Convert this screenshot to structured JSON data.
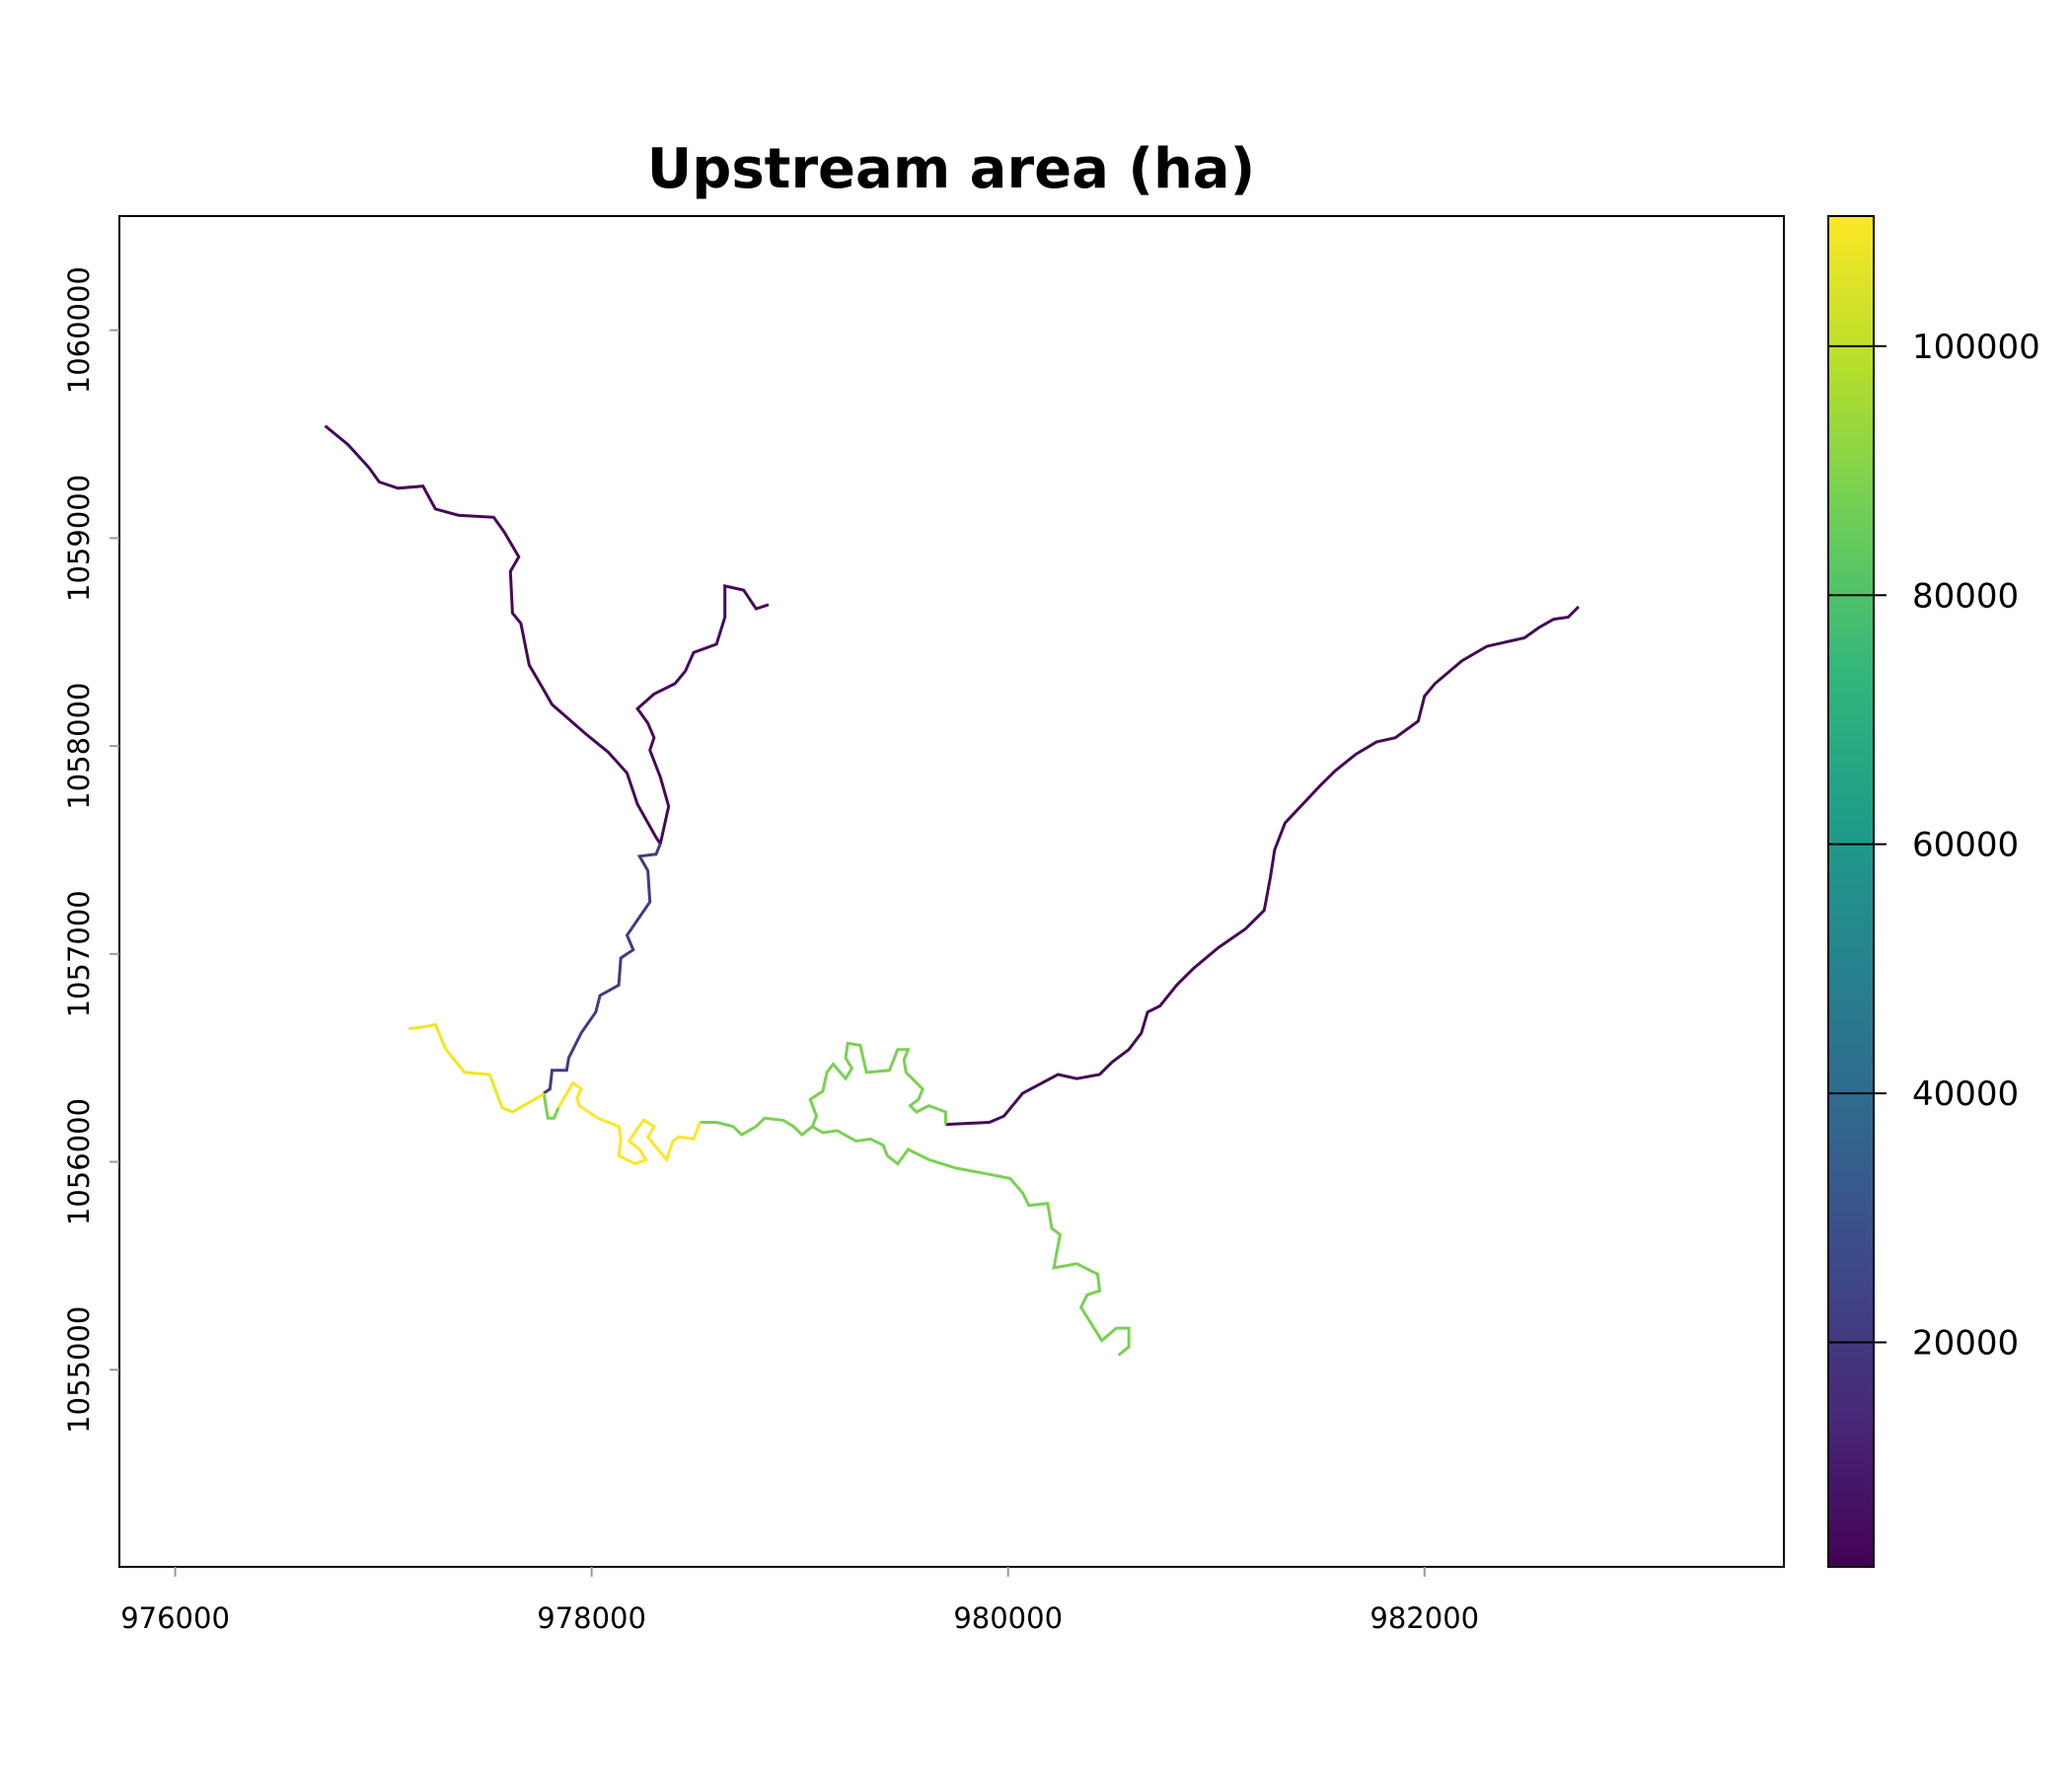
{
  "chart_data": {
    "type": "line",
    "title": "Upstream area (ha)",
    "xlabel": "",
    "ylabel": "",
    "xlim": [
      975732,
      983726
    ],
    "ylim": [
      1054052,
      1060549
    ],
    "x_ticks": [
      976000,
      978000,
      980000,
      982000
    ],
    "y_ticks": [
      1055000,
      1056000,
      1057000,
      1058000,
      1059000,
      1060000
    ],
    "grid": false,
    "colorbar": {
      "range": [
        1970,
        110450
      ],
      "ticks": [
        20000,
        40000,
        60000,
        80000,
        100000
      ],
      "colormap": "viridis",
      "stops": [
        "#440154",
        "#482878",
        "#3e4989",
        "#31688e",
        "#26828e",
        "#1f9e89",
        "#35b779",
        "#6ece58",
        "#b5de2b",
        "#fde725"
      ]
    },
    "series": [
      {
        "value": 3000,
        "color": "#46085c",
        "points": [
          [
            976720,
            1059540
          ],
          [
            976830,
            1059450
          ],
          [
            976930,
            1059340
          ],
          [
            976980,
            1059270
          ],
          [
            977070,
            1059240
          ],
          [
            977190,
            1059250
          ],
          [
            977250,
            1059140
          ],
          [
            977360,
            1059110
          ],
          [
            977530,
            1059100
          ],
          [
            977580,
            1059030
          ],
          [
            977650,
            1058910
          ],
          [
            977610,
            1058840
          ],
          [
            977620,
            1058640
          ],
          [
            977660,
            1058590
          ],
          [
            977700,
            1058390
          ],
          [
            977770,
            1058270
          ],
          [
            977810,
            1058200
          ],
          [
            977970,
            1058060
          ],
          [
            978080,
            1057970
          ],
          [
            978170,
            1057870
          ],
          [
            978220,
            1057720
          ],
          [
            978310,
            1057560
          ],
          [
            978330,
            1057530
          ]
        ]
      },
      {
        "value": 3000,
        "color": "#46085c",
        "points": [
          [
            978850,
            1058680
          ],
          [
            978790,
            1058660
          ],
          [
            978730,
            1058750
          ],
          [
            978640,
            1058770
          ],
          [
            978640,
            1058620
          ],
          [
            978600,
            1058490
          ],
          [
            978490,
            1058450
          ],
          [
            978450,
            1058360
          ],
          [
            978400,
            1058300
          ],
          [
            978300,
            1058250
          ],
          [
            978220,
            1058180
          ],
          [
            978270,
            1058110
          ],
          [
            978300,
            1058040
          ],
          [
            978280,
            1057980
          ],
          [
            978330,
            1057850
          ],
          [
            978370,
            1057710
          ],
          [
            978330,
            1057530
          ]
        ]
      },
      {
        "value": 25000,
        "color": "#443983",
        "points": [
          [
            978330,
            1057530
          ],
          [
            978310,
            1057480
          ],
          [
            978230,
            1057470
          ],
          [
            978270,
            1057400
          ],
          [
            978280,
            1057250
          ],
          [
            978170,
            1057090
          ],
          [
            978200,
            1057020
          ],
          [
            978140,
            1056980
          ],
          [
            978130,
            1056850
          ],
          [
            978040,
            1056800
          ],
          [
            978020,
            1056720
          ],
          [
            977950,
            1056620
          ],
          [
            977890,
            1056500
          ],
          [
            977880,
            1056440
          ],
          [
            977810,
            1056440
          ],
          [
            977800,
            1056350
          ],
          [
            977770,
            1056330
          ]
        ]
      },
      {
        "value": 4000,
        "color": "#440c56",
        "points": [
          [
            979700,
            1056180
          ],
          [
            979910,
            1056190
          ],
          [
            979980,
            1056220
          ],
          [
            980070,
            1056330
          ],
          [
            980240,
            1056420
          ],
          [
            980330,
            1056400
          ],
          [
            980440,
            1056420
          ],
          [
            980500,
            1056480
          ],
          [
            980580,
            1056540
          ],
          [
            980640,
            1056620
          ],
          [
            980670,
            1056720
          ],
          [
            980730,
            1056750
          ],
          [
            980810,
            1056850
          ],
          [
            980890,
            1056930
          ],
          [
            981010,
            1057030
          ],
          [
            981140,
            1057120
          ],
          [
            981230,
            1057210
          ],
          [
            981260,
            1057370
          ],
          [
            981280,
            1057500
          ],
          [
            981330,
            1057630
          ],
          [
            981500,
            1057810
          ],
          [
            981570,
            1057880
          ],
          [
            981670,
            1057960
          ],
          [
            981770,
            1058020
          ],
          [
            981860,
            1058040
          ],
          [
            981970,
            1058120
          ],
          [
            982000,
            1058240
          ],
          [
            982050,
            1058300
          ],
          [
            982180,
            1058410
          ],
          [
            982300,
            1058480
          ],
          [
            982480,
            1058520
          ],
          [
            982550,
            1058570
          ],
          [
            982620,
            1058610
          ],
          [
            982690,
            1058620
          ],
          [
            982740,
            1058670
          ]
        ]
      },
      {
        "value": 88000,
        "color": "#7ad151",
        "points": [
          [
            977770,
            1056330
          ],
          [
            977790,
            1056210
          ],
          [
            977820,
            1056210
          ],
          [
            977840,
            1056260
          ]
        ]
      },
      {
        "value": 86000,
        "color": "#7ad151",
        "points": [
          [
            978520,
            1056190
          ],
          [
            978600,
            1056190
          ],
          [
            978680,
            1056170
          ],
          [
            978720,
            1056130
          ],
          [
            978790,
            1056170
          ],
          [
            978830,
            1056210
          ],
          [
            978920,
            1056200
          ],
          [
            978970,
            1056170
          ],
          [
            979010,
            1056130
          ],
          [
            979060,
            1056170
          ],
          [
            979080,
            1056220
          ],
          [
            979050,
            1056300
          ],
          [
            979110,
            1056340
          ],
          [
            979130,
            1056430
          ],
          [
            979160,
            1056470
          ],
          [
            979220,
            1056400
          ],
          [
            979250,
            1056450
          ],
          [
            979220,
            1056500
          ],
          [
            979230,
            1056570
          ],
          [
            979290,
            1056560
          ],
          [
            979320,
            1056430
          ],
          [
            979430,
            1056440
          ],
          [
            979470,
            1056540
          ],
          [
            979520,
            1056540
          ],
          [
            979500,
            1056490
          ],
          [
            979510,
            1056430
          ],
          [
            979590,
            1056350
          ],
          [
            979570,
            1056300
          ],
          [
            979530,
            1056270
          ],
          [
            979560,
            1056240
          ],
          [
            979620,
            1056270
          ],
          [
            979700,
            1056240
          ],
          [
            979700,
            1056180
          ]
        ]
      },
      {
        "value": 86000,
        "color": "#7ad151",
        "points": [
          [
            979060,
            1056170
          ],
          [
            979110,
            1056140
          ],
          [
            979180,
            1056150
          ],
          [
            979270,
            1056100
          ],
          [
            979340,
            1056110
          ],
          [
            979400,
            1056080
          ],
          [
            979420,
            1056030
          ],
          [
            979470,
            1055990
          ],
          [
            979520,
            1056060
          ],
          [
            979620,
            1056010
          ],
          [
            979750,
            1055970
          ],
          [
            979910,
            1055940
          ],
          [
            980010,
            1055920
          ],
          [
            980070,
            1055850
          ],
          [
            980100,
            1055790
          ],
          [
            980190,
            1055800
          ],
          [
            980210,
            1055680
          ],
          [
            980250,
            1055650
          ],
          [
            980220,
            1055490
          ],
          [
            980330,
            1055510
          ],
          [
            980430,
            1055460
          ],
          [
            980440,
            1055380
          ],
          [
            980380,
            1055360
          ],
          [
            980350,
            1055300
          ],
          [
            980450,
            1055140
          ],
          [
            980520,
            1055200
          ],
          [
            980580,
            1055200
          ],
          [
            980580,
            1055110
          ],
          [
            980530,
            1055070
          ]
        ]
      },
      {
        "value": 108000,
        "color": "#f4e61e",
        "points": [
          [
            977120,
            1056640
          ],
          [
            977200,
            1056650
          ],
          [
            977250,
            1056660
          ],
          [
            977300,
            1056540
          ],
          [
            977390,
            1056430
          ],
          [
            977510,
            1056420
          ],
          [
            977570,
            1056260
          ],
          [
            977620,
            1056240
          ],
          [
            977760,
            1056320
          ],
          [
            977770,
            1056330
          ]
        ]
      },
      {
        "value": 106000,
        "color": "#fde725",
        "points": [
          [
            977840,
            1056260
          ],
          [
            977910,
            1056380
          ],
          [
            977950,
            1056350
          ],
          [
            977930,
            1056310
          ],
          [
            977940,
            1056270
          ],
          [
            978030,
            1056210
          ],
          [
            978130,
            1056170
          ],
          [
            978140,
            1056110
          ],
          [
            978130,
            1056030
          ],
          [
            978210,
            1055990
          ],
          [
            978260,
            1056010
          ],
          [
            978230,
            1056060
          ],
          [
            978180,
            1056100
          ],
          [
            978220,
            1056160
          ],
          [
            978250,
            1056200
          ],
          [
            978300,
            1056170
          ],
          [
            978270,
            1056120
          ],
          [
            978310,
            1056070
          ],
          [
            978360,
            1056010
          ],
          [
            978390,
            1056100
          ],
          [
            978420,
            1056120
          ],
          [
            978490,
            1056110
          ],
          [
            978520,
            1056190
          ]
        ]
      }
    ]
  }
}
